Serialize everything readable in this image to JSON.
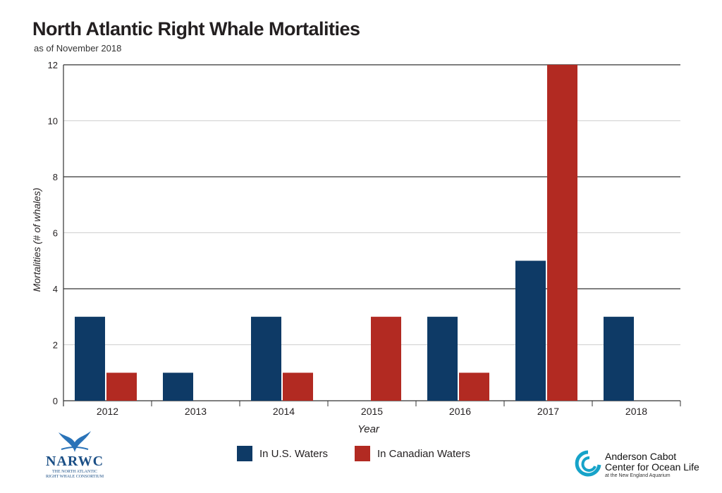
{
  "title": "North Atlantic Right Whale Mortalities",
  "subtitle": "as of November 2018",
  "colors": {
    "us": "#0e3a66",
    "canada": "#b22a22"
  },
  "logos": {
    "narwc_abbr": "NARWC",
    "narwc_full_line1": "THE NORTH ATLANTIC",
    "narwc_full_line2": "RIGHT WHALE CONSORTIUM",
    "acc_line1": "Anderson Cabot",
    "acc_line2": "Center for Ocean Life",
    "acc_line3": "at the New England Aquarium"
  },
  "chart_data": {
    "type": "bar",
    "categories": [
      "2012",
      "2013",
      "2014",
      "2015",
      "2016",
      "2017",
      "2018"
    ],
    "series": [
      {
        "name": "In U.S. Waters",
        "values": [
          3,
          1,
          3,
          0,
          3,
          5,
          3
        ]
      },
      {
        "name": "In Canadian Waters",
        "values": [
          1,
          0,
          1,
          3,
          1,
          12,
          0
        ]
      }
    ],
    "xlabel": "Year",
    "ylabel": "Mortalities (# of whales)",
    "ylim": [
      0,
      12
    ],
    "yticks": [
      0,
      2,
      4,
      6,
      8,
      10,
      12
    ],
    "grid": true,
    "legend": "bottom"
  }
}
